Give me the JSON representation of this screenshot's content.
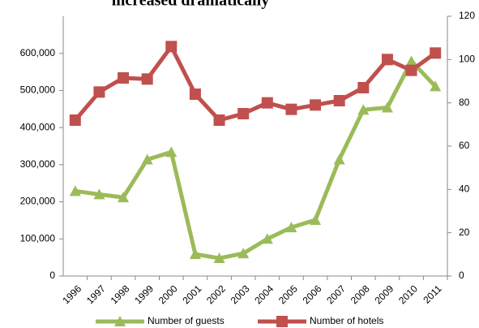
{
  "chart_data": {
    "type": "line",
    "title": "increased dramatically",
    "categories": [
      "1996",
      "1997",
      "1998",
      "1999",
      "2000",
      "2001",
      "2002",
      "2003",
      "2004",
      "2005",
      "2006",
      "2007",
      "2008",
      "2009",
      "2010",
      "2011"
    ],
    "series": [
      {
        "name": "Number of guests",
        "color": "#9bbb59",
        "marker": "triangle",
        "values": [
          229000,
          220000,
          212000,
          314000,
          334000,
          59000,
          48000,
          61000,
          100000,
          131000,
          151000,
          314000,
          448000,
          454000,
          579000,
          511000
        ]
      },
      {
        "name": "Number of hotels",
        "color": "#c0504d",
        "marker": "square",
        "axis": "y2",
        "values": [
          72,
          85,
          91.5,
          91,
          106,
          84,
          72,
          75,
          80,
          77,
          79,
          81,
          87,
          100,
          95,
          103
        ]
      }
    ],
    "ylim": [
      0,
      700000
    ],
    "yticks": [
      0,
      {
        "value": 100000,
        "label": "100,000"
      },
      {
        "value": 200000,
        "label": "200,000"
      },
      {
        "value": 300000,
        "label": "300,000"
      },
      {
        "value": 400000,
        "label": "400,000"
      },
      {
        "value": 500000,
        "label": "500,000"
      },
      {
        "value": 600000,
        "label": "600,000"
      }
    ],
    "y2lim": [
      0,
      120
    ],
    "y2ticks": [
      0,
      20,
      40,
      60,
      80,
      100,
      120
    ],
    "grid": false,
    "legend": "bottom"
  }
}
